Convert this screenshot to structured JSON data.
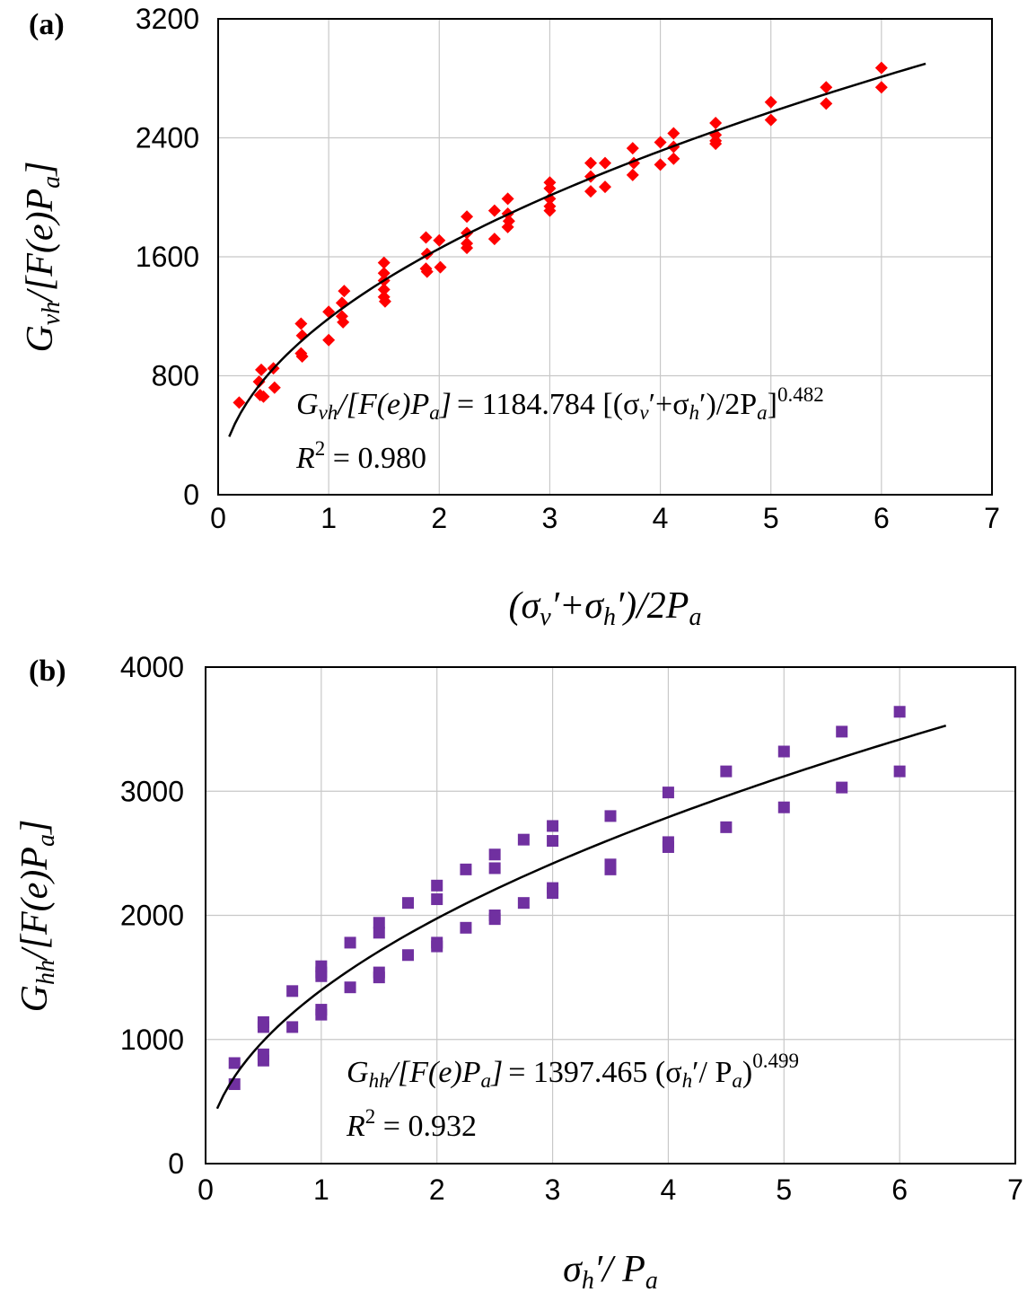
{
  "chart_data": [
    {
      "type": "scatter",
      "panel_label": "(a)",
      "xlim": [
        0,
        7
      ],
      "ylim": [
        0,
        3200
      ],
      "x_ticks": [
        "0",
        "1",
        "2",
        "3",
        "4",
        "5",
        "6",
        "7"
      ],
      "y_ticks": [
        "0",
        "800",
        "1600",
        "2400",
        "3200"
      ],
      "grid": true,
      "xlabel": {
        "pre": "(σ",
        "s1": "v",
        "mid": "′+σ",
        "s2": "h",
        "post": "′)/2P",
        "s3": "a"
      },
      "ylabel": {
        "pre": "G",
        "s1": "vh",
        "mid": "/[F(e)P",
        "s2": "a",
        "post": "]"
      },
      "equation": {
        "lhs_g": "G",
        "lhs_sub": "vh",
        "lhs_rest": "/[F(e)P",
        "lhs_sub2": "a",
        "lhs_close": "]",
        "rhs": "= 1184.784 [(σ",
        "rhs_s1": "v",
        "rhs_mid": "′+σ",
        "rhs_s2": "h",
        "rhs_mid2": "′)/2P",
        "rhs_s3": "a",
        "rhs_close": "]",
        "exponent": "0.482"
      },
      "r2": {
        "label": "R",
        "sup": "2",
        "value": " = 0.980"
      },
      "marker": "diamond",
      "color": "#ff0000",
      "points": [
        [
          0.19,
          620
        ],
        [
          0.37,
          760
        ],
        [
          0.38,
          670
        ],
        [
          0.39,
          840
        ],
        [
          0.41,
          660
        ],
        [
          0.5,
          850
        ],
        [
          0.51,
          720
        ],
        [
          0.75,
          1150
        ],
        [
          0.76,
          1070
        ],
        [
          0.75,
          950
        ],
        [
          0.76,
          930
        ],
        [
          1.0,
          1040
        ],
        [
          1.0,
          1230
        ],
        [
          1.12,
          1290
        ],
        [
          1.12,
          1200
        ],
        [
          1.13,
          1160
        ],
        [
          1.14,
          1370
        ],
        [
          1.5,
          1560
        ],
        [
          1.5,
          1490
        ],
        [
          1.5,
          1440
        ],
        [
          1.5,
          1380
        ],
        [
          1.5,
          1330
        ],
        [
          1.51,
          1300
        ],
        [
          1.88,
          1730
        ],
        [
          1.89,
          1620
        ],
        [
          1.88,
          1520
        ],
        [
          1.89,
          1500
        ],
        [
          2.0,
          1710
        ],
        [
          2.01,
          1530
        ],
        [
          2.25,
          1870
        ],
        [
          2.25,
          1760
        ],
        [
          2.25,
          1690
        ],
        [
          2.25,
          1660
        ],
        [
          2.5,
          1910
        ],
        [
          2.5,
          1720
        ],
        [
          2.62,
          1990
        ],
        [
          2.62,
          1890
        ],
        [
          2.63,
          1840
        ],
        [
          2.62,
          1800
        ],
        [
          3.0,
          2100
        ],
        [
          3.0,
          2060
        ],
        [
          3.0,
          1990
        ],
        [
          3.0,
          1940
        ],
        [
          3.0,
          1910
        ],
        [
          3.37,
          2230
        ],
        [
          3.37,
          2140
        ],
        [
          3.37,
          2040
        ],
        [
          3.5,
          2230
        ],
        [
          3.5,
          2070
        ],
        [
          3.75,
          2330
        ],
        [
          3.76,
          2230
        ],
        [
          3.75,
          2150
        ],
        [
          4.0,
          2370
        ],
        [
          4.0,
          2220
        ],
        [
          4.12,
          2430
        ],
        [
          4.12,
          2340
        ],
        [
          4.12,
          2260
        ],
        [
          4.5,
          2500
        ],
        [
          4.5,
          2420
        ],
        [
          4.5,
          2380
        ],
        [
          4.5,
          2360
        ],
        [
          5.0,
          2640
        ],
        [
          5.0,
          2520
        ],
        [
          5.5,
          2740
        ],
        [
          5.5,
          2630
        ],
        [
          6.0,
          2870
        ],
        [
          6.0,
          2740
        ]
      ],
      "fit": {
        "a": 1184.784,
        "b": 0.482,
        "x_from": 0.1,
        "x_to": 6.4
      }
    },
    {
      "type": "scatter",
      "panel_label": "(b)",
      "xlim": [
        0,
        7
      ],
      "ylim": [
        0,
        4000
      ],
      "x_ticks": [
        "0",
        "1",
        "2",
        "3",
        "4",
        "5",
        "6",
        "7"
      ],
      "y_ticks": [
        "0",
        "1000",
        "2000",
        "3000",
        "4000"
      ],
      "grid": true,
      "xlabel": {
        "pre": "σ",
        "s1": "h",
        "mid": "′/ P",
        "s2": "a",
        "post": ""
      },
      "ylabel": {
        "pre": "G",
        "s1": "hh",
        "mid": "/[F(e)P",
        "s2": "a",
        "post": "]"
      },
      "equation": {
        "lhs_g": "G",
        "lhs_sub": "hh",
        "lhs_rest": "/[F(e)P",
        "lhs_sub2": "a",
        "lhs_close": "]",
        "rhs": "= 1397.465 (σ",
        "rhs_s1": "h",
        "rhs_mid": "′/ P",
        "rhs_s2": "a",
        "rhs_mid2": "",
        "rhs_s3": "",
        "rhs_close": ")",
        "exponent": "0.499"
      },
      "r2": {
        "label": "R",
        "sup": "2",
        "value": " = 0.932"
      },
      "marker": "square",
      "color": "#7030a0",
      "points": [
        [
          0.25,
          810
        ],
        [
          0.25,
          640
        ],
        [
          0.5,
          1140
        ],
        [
          0.5,
          1100
        ],
        [
          0.5,
          880
        ],
        [
          0.5,
          830
        ],
        [
          0.75,
          1390
        ],
        [
          0.75,
          1100
        ],
        [
          1.0,
          1590
        ],
        [
          1.0,
          1540
        ],
        [
          1.0,
          1510
        ],
        [
          1.0,
          1240
        ],
        [
          1.0,
          1200
        ],
        [
          1.25,
          1780
        ],
        [
          1.25,
          1420
        ],
        [
          1.5,
          1940
        ],
        [
          1.5,
          1860
        ],
        [
          1.5,
          1540
        ],
        [
          1.5,
          1500
        ],
        [
          1.75,
          2100
        ],
        [
          1.75,
          1680
        ],
        [
          2.0,
          2240
        ],
        [
          2.0,
          2130
        ],
        [
          2.0,
          1780
        ],
        [
          2.0,
          1750
        ],
        [
          2.25,
          2370
        ],
        [
          2.25,
          1900
        ],
        [
          2.5,
          2490
        ],
        [
          2.5,
          2380
        ],
        [
          2.5,
          2000
        ],
        [
          2.5,
          1970
        ],
        [
          2.75,
          2610
        ],
        [
          2.75,
          2100
        ],
        [
          3.0,
          2720
        ],
        [
          3.0,
          2600
        ],
        [
          3.0,
          2220
        ],
        [
          3.0,
          2180
        ],
        [
          3.5,
          2800
        ],
        [
          3.5,
          2410
        ],
        [
          3.5,
          2370
        ],
        [
          4.0,
          2990
        ],
        [
          4.0,
          2590
        ],
        [
          4.0,
          2550
        ],
        [
          4.5,
          3160
        ],
        [
          4.5,
          2710
        ],
        [
          5.0,
          3320
        ],
        [
          5.0,
          2870
        ],
        [
          5.5,
          3480
        ],
        [
          5.5,
          3030
        ],
        [
          6.0,
          3640
        ],
        [
          6.0,
          3160
        ]
      ],
      "fit": {
        "a": 1397.465,
        "b": 0.499,
        "x_from": 0.1,
        "x_to": 6.4
      }
    }
  ]
}
